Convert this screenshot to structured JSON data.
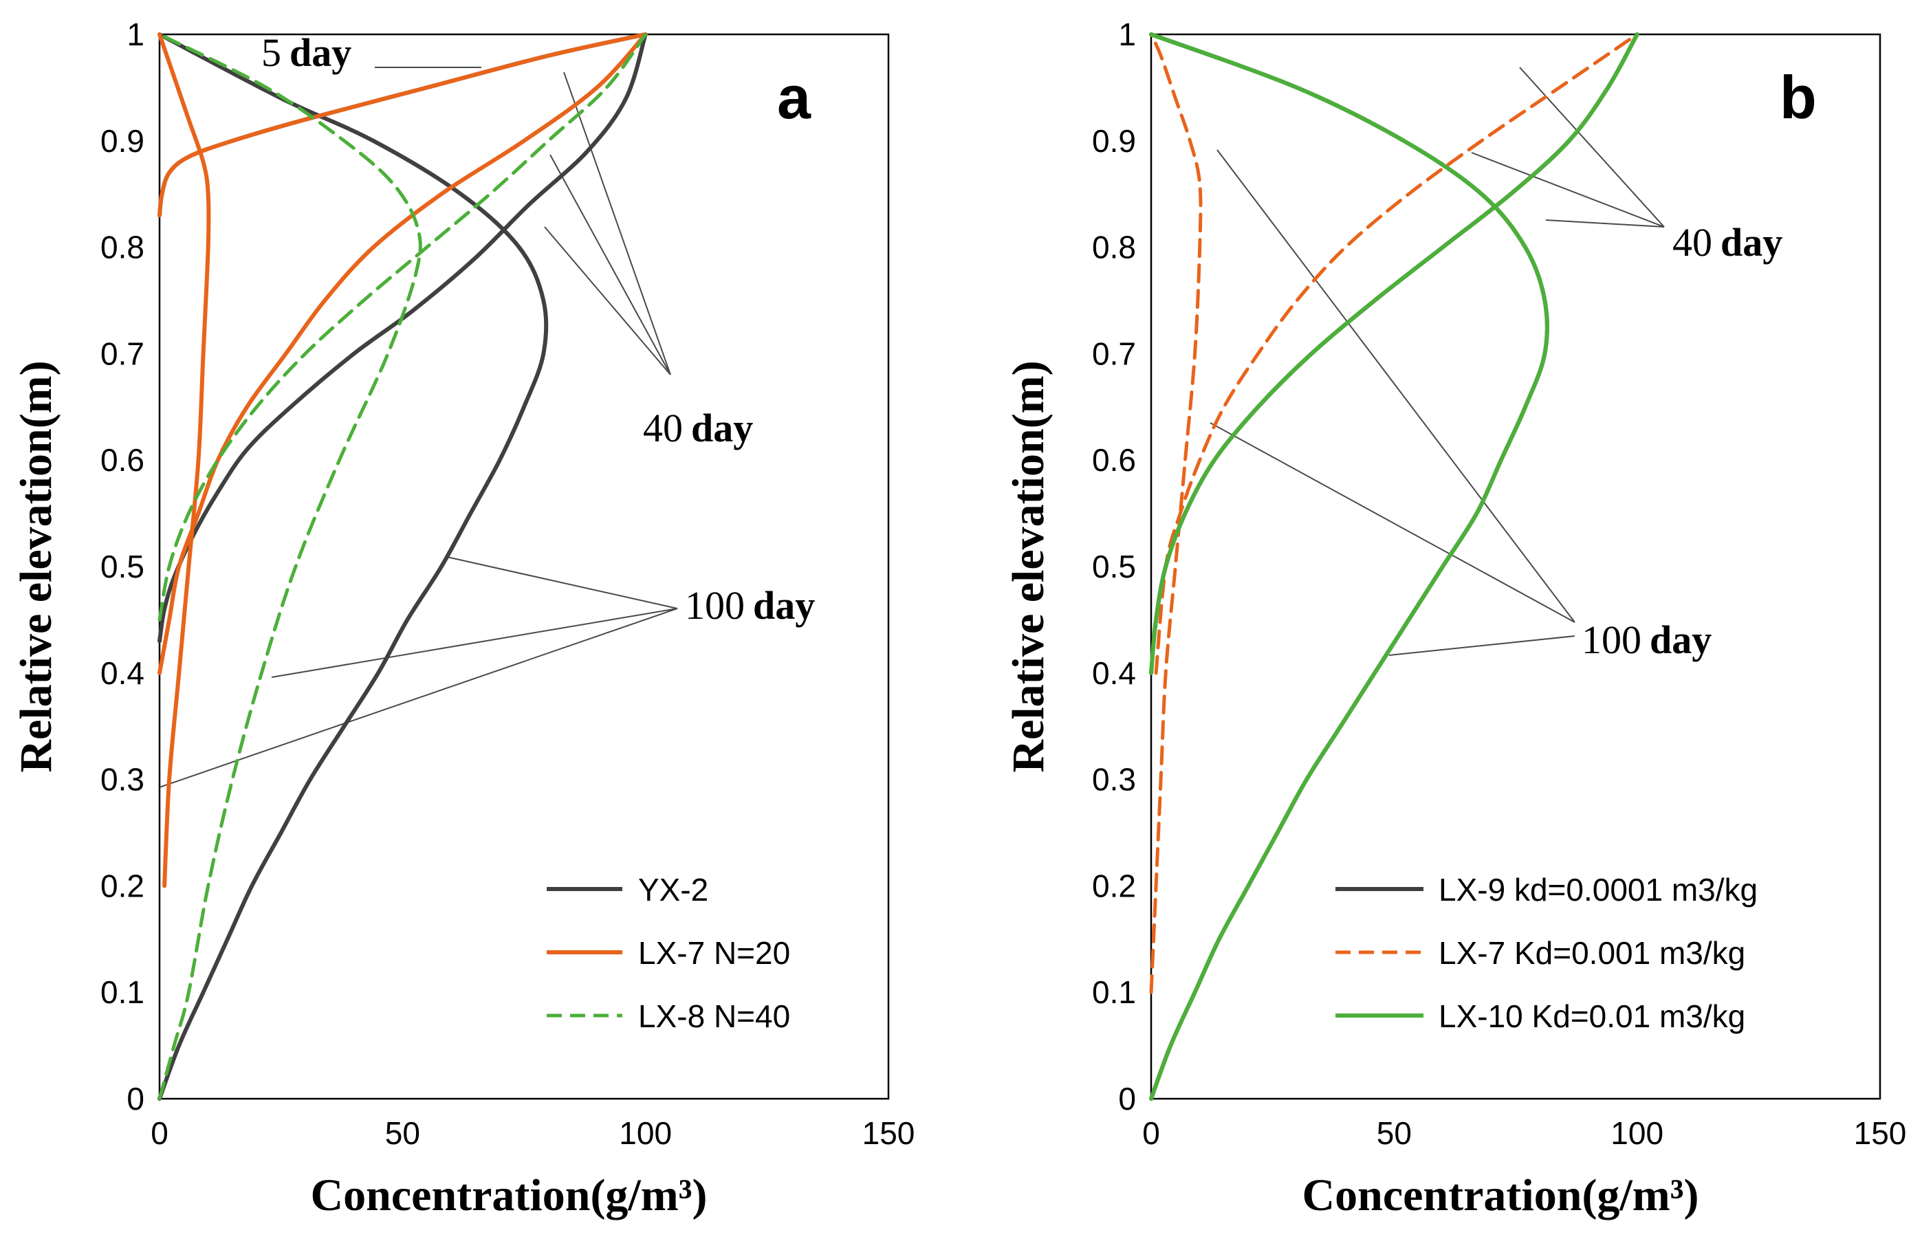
{
  "chart_data": [
    {
      "type": "line",
      "panel_label": "a",
      "xlabel": "Concentration(g/m³)",
      "ylabel": "Relative elevation(m)",
      "xlim": [
        0,
        150
      ],
      "ylim": [
        0,
        1
      ],
      "x_ticks": [
        "0",
        "50",
        "100",
        "150"
      ],
      "y_ticks": [
        "0",
        "0.1",
        "0.2",
        "0.3",
        "0.4",
        "0.5",
        "0.6",
        "0.7",
        "0.8",
        "0.9",
        "1"
      ],
      "legend": {
        "placement": "bottom-right",
        "entries": [
          "YX-2",
          "LX-7 N=20",
          "LX-8 N=40"
        ]
      },
      "annotations": [
        {
          "number": "5",
          "unit": "day"
        },
        {
          "number": "40",
          "unit": "day"
        },
        {
          "number": "100",
          "unit": "day"
        }
      ],
      "series": [
        {
          "name": "YX-2",
          "color": "#404040",
          "style": "solid",
          "time": "5 day",
          "points": [
            [
              0,
              0.83
            ],
            [
              0.5,
              0.85
            ],
            [
              2,
              0.87
            ],
            [
              6,
              0.885
            ],
            [
              15,
              0.9
            ],
            [
              30,
              0.92
            ],
            [
              55,
              0.95
            ],
            [
              80,
              0.98
            ],
            [
              100,
              1.0
            ]
          ]
        },
        {
          "name": "YX-2",
          "color": "#404040",
          "style": "solid",
          "time": "40 day",
          "points": [
            [
              0,
              0.43
            ],
            [
              1,
              0.46
            ],
            [
              3,
              0.49
            ],
            [
              7,
              0.53
            ],
            [
              12,
              0.57
            ],
            [
              18,
              0.61
            ],
            [
              27,
              0.65
            ],
            [
              40,
              0.7
            ],
            [
              52,
              0.74
            ],
            [
              65,
              0.79
            ],
            [
              76,
              0.84
            ],
            [
              88,
              0.89
            ],
            [
              96,
              0.94
            ],
            [
              100,
              1.0
            ]
          ]
        },
        {
          "name": "YX-2",
          "color": "#404040",
          "style": "solid",
          "time": "100 day",
          "points": [
            [
              0,
              0
            ],
            [
              4,
              0.05
            ],
            [
              9,
              0.1
            ],
            [
              14,
              0.15
            ],
            [
              19,
              0.2
            ],
            [
              25,
              0.25
            ],
            [
              31,
              0.3
            ],
            [
              38,
              0.35
            ],
            [
              45,
              0.4
            ],
            [
              51,
              0.45
            ],
            [
              58,
              0.5
            ],
            [
              64,
              0.55
            ],
            [
              70,
              0.6
            ],
            [
              75,
              0.65
            ],
            [
              79,
              0.7
            ],
            [
              79,
              0.75
            ],
            [
              74,
              0.8
            ],
            [
              62,
              0.85
            ],
            [
              44,
              0.9
            ],
            [
              25,
              0.94
            ],
            [
              0,
              1.0
            ]
          ]
        },
        {
          "name": "LX-7 N=20",
          "color": "#e8641b",
          "style": "solid",
          "time": "5 day",
          "points": [
            [
              0,
              0.83
            ],
            [
              0.5,
              0.85
            ],
            [
              2,
              0.87
            ],
            [
              6,
              0.885
            ],
            [
              15,
              0.9
            ],
            [
              30,
              0.92
            ],
            [
              55,
              0.95
            ],
            [
              80,
              0.98
            ],
            [
              100,
              1.0
            ]
          ]
        },
        {
          "name": "LX-7 N=20",
          "color": "#e8641b",
          "style": "solid",
          "time": "40 day",
          "points": [
            [
              0,
              0.4
            ],
            [
              2,
              0.45
            ],
            [
              4,
              0.5
            ],
            [
              8,
              0.55
            ],
            [
              12,
              0.6
            ],
            [
              18,
              0.65
            ],
            [
              26,
              0.7
            ],
            [
              34,
              0.75
            ],
            [
              44,
              0.8
            ],
            [
              58,
              0.85
            ],
            [
              75,
              0.9
            ],
            [
              90,
              0.95
            ],
            [
              100,
              1.0
            ]
          ]
        },
        {
          "name": "LX-7 N=20",
          "color": "#e8641b",
          "style": "solid",
          "time": "100 day",
          "points": [
            [
              1,
              0.2
            ],
            [
              2,
              0.3
            ],
            [
              4,
              0.4
            ],
            [
              6,
              0.5
            ],
            [
              8,
              0.6
            ],
            [
              9,
              0.7
            ],
            [
              10,
              0.8
            ],
            [
              10,
              0.85
            ],
            [
              9,
              0.88
            ],
            [
              6,
              0.92
            ],
            [
              3,
              0.96
            ],
            [
              0,
              1.0
            ]
          ]
        },
        {
          "name": "LX-8 N=40",
          "color": "#4caf3a",
          "style": "dashed",
          "time": "40 day",
          "points": [
            [
              0,
              0.45
            ],
            [
              2,
              0.5
            ],
            [
              6,
              0.55
            ],
            [
              12,
              0.6
            ],
            [
              20,
              0.65
            ],
            [
              30,
              0.7
            ],
            [
              42,
              0.75
            ],
            [
              55,
              0.8
            ],
            [
              68,
              0.85
            ],
            [
              80,
              0.9
            ],
            [
              92,
              0.95
            ],
            [
              100,
              1.0
            ]
          ]
        },
        {
          "name": "LX-8 N=40",
          "color": "#4caf3a",
          "style": "dashed",
          "time": "100 day",
          "points": [
            [
              0,
              0
            ],
            [
              3,
              0.05
            ],
            [
              6,
              0.1
            ],
            [
              10,
              0.2
            ],
            [
              15,
              0.3
            ],
            [
              21,
              0.4
            ],
            [
              28,
              0.5
            ],
            [
              37,
              0.6
            ],
            [
              47,
              0.7
            ],
            [
              53,
              0.78
            ],
            [
              53,
              0.82
            ],
            [
              48,
              0.86
            ],
            [
              38,
              0.9
            ],
            [
              22,
              0.95
            ],
            [
              0,
              1.0
            ]
          ]
        }
      ]
    },
    {
      "type": "line",
      "panel_label": "b",
      "xlabel": "Concentration(g/m³)",
      "ylabel": "Relative elevation(m)",
      "xlim": [
        0,
        150
      ],
      "ylim": [
        0,
        1
      ],
      "x_ticks": [
        "0",
        "50",
        "100",
        "150"
      ],
      "y_ticks": [
        "0",
        "0.1",
        "0.2",
        "0.3",
        "0.4",
        "0.5",
        "0.6",
        "0.7",
        "0.8",
        "0.9",
        "1"
      ],
      "legend": {
        "placement": "bottom-right",
        "entries": [
          "LX-9 kd=0.0001 m3/kg",
          "LX-7 Kd=0.001 m3/kg",
          "LX-10 Kd=0.01 m3/kg"
        ]
      },
      "annotations": [
        {
          "number": "40",
          "unit": "day"
        },
        {
          "number": "100",
          "unit": "day"
        }
      ],
      "series": [
        {
          "name": "LX-9 kd=0.0001 m3/kg",
          "color": "#404040",
          "style": "solid",
          "time": "40 day",
          "points": [
            [
              0,
              0.4
            ],
            [
              1,
              0.45
            ],
            [
              3,
              0.5
            ],
            [
              7,
              0.55
            ],
            [
              13,
              0.6
            ],
            [
              22,
              0.65
            ],
            [
              33,
              0.7
            ],
            [
              46,
              0.75
            ],
            [
              60,
              0.8
            ],
            [
              74,
              0.85
            ],
            [
              86,
              0.9
            ],
            [
              94,
              0.95
            ],
            [
              100,
              1.0
            ]
          ]
        },
        {
          "name": "LX-9 kd=0.0001 m3/kg",
          "color": "#404040",
          "style": "solid",
          "time": "100 day",
          "points": [
            [
              0,
              0
            ],
            [
              4,
              0.05
            ],
            [
              9,
              0.1
            ],
            [
              14,
              0.15
            ],
            [
              20,
              0.2
            ],
            [
              26,
              0.25
            ],
            [
              32,
              0.3
            ],
            [
              39,
              0.35
            ],
            [
              46,
              0.4
            ],
            [
              53,
              0.45
            ],
            [
              60,
              0.5
            ],
            [
              67,
              0.55
            ],
            [
              72,
              0.6
            ],
            [
              77,
              0.65
            ],
            [
              81,
              0.7
            ],
            [
              81,
              0.75
            ],
            [
              77,
              0.8
            ],
            [
              68,
              0.85
            ],
            [
              52,
              0.9
            ],
            [
              30,
              0.95
            ],
            [
              0,
              1.0
            ]
          ]
        },
        {
          "name": "LX-7 Kd=0.001 m3/kg",
          "color": "#e8641b",
          "style": "dashed",
          "time": "40 day",
          "points": [
            [
              1,
              0.4
            ],
            [
              3,
              0.5
            ],
            [
              6,
              0.55
            ],
            [
              10,
              0.6
            ],
            [
              15,
              0.65
            ],
            [
              22,
              0.7
            ],
            [
              30,
              0.75
            ],
            [
              40,
              0.8
            ],
            [
              53,
              0.85
            ],
            [
              68,
              0.9
            ],
            [
              84,
              0.95
            ],
            [
              100,
              1.0
            ]
          ]
        },
        {
          "name": "LX-7 Kd=0.001 m3/kg",
          "color": "#e8641b",
          "style": "dashed",
          "time": "100 day",
          "points": [
            [
              0,
              0.1
            ],
            [
              1,
              0.2
            ],
            [
              2,
              0.3
            ],
            [
              3,
              0.4
            ],
            [
              5,
              0.5
            ],
            [
              7,
              0.6
            ],
            [
              9,
              0.7
            ],
            [
              10,
              0.8
            ],
            [
              10,
              0.86
            ],
            [
              8,
              0.9
            ],
            [
              5,
              0.94
            ],
            [
              2,
              0.98
            ],
            [
              0,
              1.0
            ]
          ]
        },
        {
          "name": "LX-10 Kd=0.01 m3/kg",
          "color": "#4caf3a",
          "style": "solid",
          "time": "40 day",
          "points": [
            [
              0,
              0.4
            ],
            [
              1,
              0.45
            ],
            [
              3,
              0.5
            ],
            [
              7,
              0.55
            ],
            [
              13,
              0.6
            ],
            [
              22,
              0.65
            ],
            [
              33,
              0.7
            ],
            [
              46,
              0.75
            ],
            [
              60,
              0.8
            ],
            [
              74,
              0.85
            ],
            [
              86,
              0.9
            ],
            [
              94,
              0.95
            ],
            [
              100,
              1.0
            ]
          ]
        },
        {
          "name": "LX-10 Kd=0.01 m3/kg",
          "color": "#4caf3a",
          "style": "solid",
          "time": "100 day",
          "points": [
            [
              0,
              0
            ],
            [
              4,
              0.05
            ],
            [
              9,
              0.1
            ],
            [
              14,
              0.15
            ],
            [
              20,
              0.2
            ],
            [
              26,
              0.25
            ],
            [
              32,
              0.3
            ],
            [
              39,
              0.35
            ],
            [
              46,
              0.4
            ],
            [
              53,
              0.45
            ],
            [
              60,
              0.5
            ],
            [
              67,
              0.55
            ],
            [
              72,
              0.6
            ],
            [
              77,
              0.65
            ],
            [
              81,
              0.7
            ],
            [
              81,
              0.75
            ],
            [
              77,
              0.8
            ],
            [
              68,
              0.85
            ],
            [
              52,
              0.9
            ],
            [
              30,
              0.95
            ],
            [
              0,
              1.0
            ]
          ]
        }
      ]
    }
  ]
}
